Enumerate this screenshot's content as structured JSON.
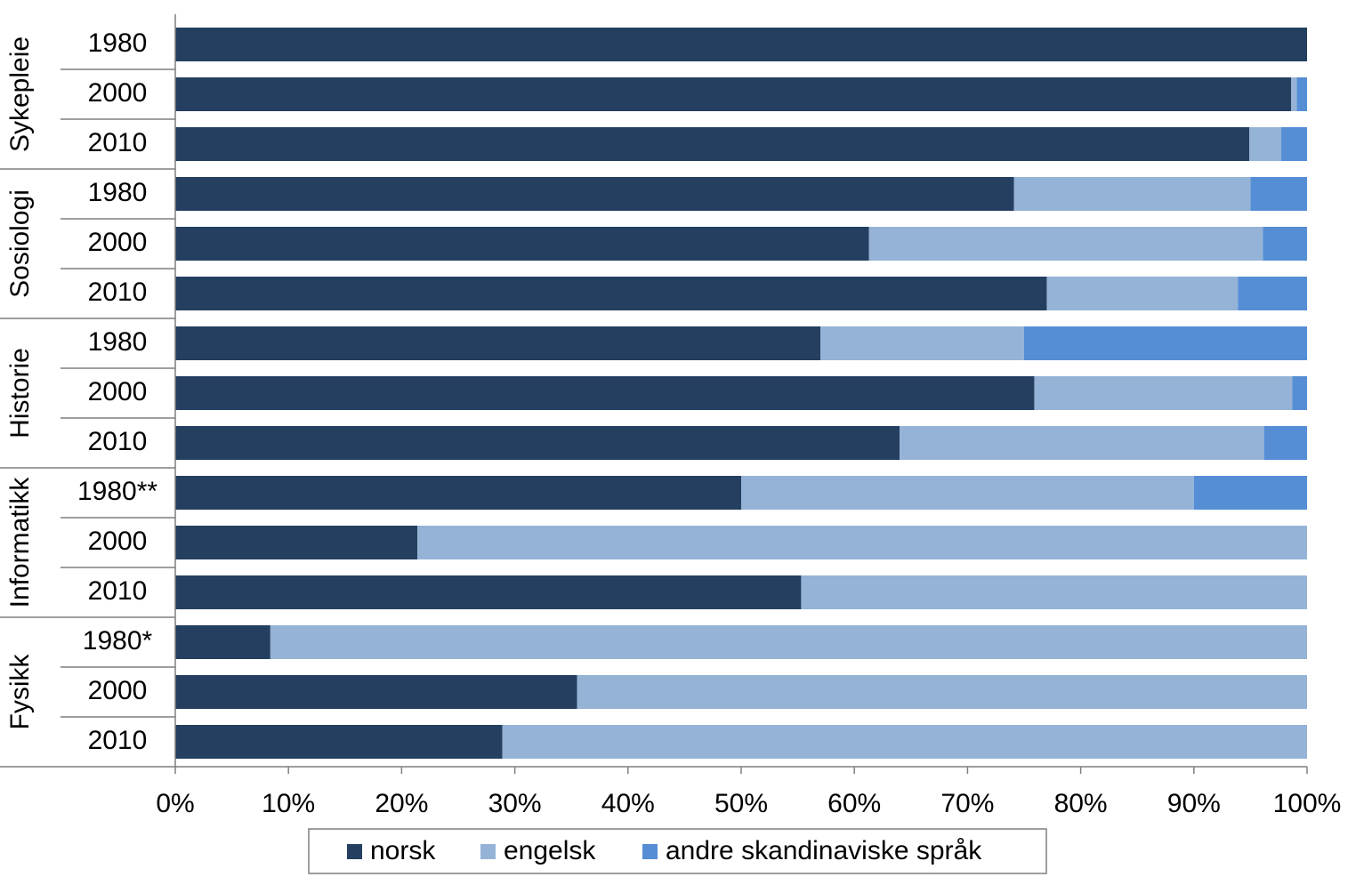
{
  "chart_data": {
    "type": "stacked-bar-100",
    "groups": [
      {
        "name": "Sykepleie",
        "categories": [
          "1980",
          "2000",
          "2010"
        ]
      },
      {
        "name": "Sosiologi",
        "categories": [
          "1980",
          "2000",
          "2010"
        ]
      },
      {
        "name": "Historie",
        "categories": [
          "1980",
          "2000",
          "2010"
        ]
      },
      {
        "name": "Informatikk",
        "categories": [
          "1980**",
          "2000",
          "2010"
        ]
      },
      {
        "name": "Fysikk",
        "categories": [
          "1980*",
          "2000",
          "2010"
        ]
      }
    ],
    "series": [
      {
        "name": "norsk",
        "color": "#243f60",
        "values": [
          100,
          98.6,
          94.9,
          74.1,
          61.3,
          77.0,
          57.0,
          75.9,
          64.0,
          50,
          21.4,
          55.3,
          8.4,
          35.5,
          28.9
        ]
      },
      {
        "name": "engelsk",
        "color": "#95b3d7",
        "values": [
          0,
          0.5,
          2.8,
          20.9,
          34.8,
          16.9,
          18.0,
          22.8,
          32.2,
          40,
          78.6,
          44.7,
          91.6,
          64.5,
          71.1
        ]
      },
      {
        "name": "andre skandinaviske språk",
        "color": "#558ed5",
        "values": [
          0,
          0.9,
          2.3,
          5.0,
          3.9,
          6.1,
          25.0,
          1.3,
          3.8,
          10,
          0,
          0,
          0,
          0,
          0
        ]
      }
    ],
    "xlim": [
      0,
      100
    ],
    "xticks": [
      {
        "value": 0,
        "label": "0%"
      },
      {
        "value": 10,
        "label": "10%"
      },
      {
        "value": 20,
        "label": "20%"
      },
      {
        "value": 30,
        "label": "30%"
      },
      {
        "value": 40,
        "label": "40%"
      },
      {
        "value": 50,
        "label": "50%"
      },
      {
        "value": 60,
        "label": "60%"
      },
      {
        "value": 70,
        "label": "70%"
      },
      {
        "value": 80,
        "label": "80%"
      },
      {
        "value": 90,
        "label": "90%"
      },
      {
        "value": 100,
        "label": "100%"
      }
    ],
    "legend": "bottom"
  }
}
